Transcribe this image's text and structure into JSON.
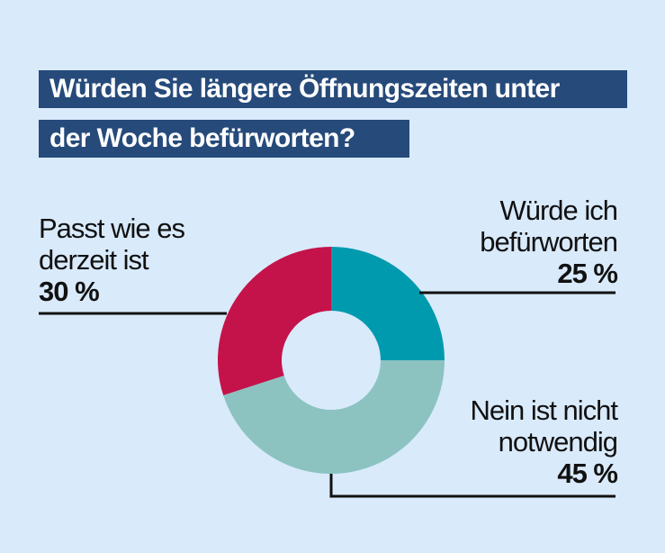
{
  "title_lines": [
    "Würden Sie längere Öffnungszeiten unter",
    "der Woche befürworten?"
  ],
  "chart_data": {
    "type": "pie",
    "title": "Würden Sie längere Öffnungszeiten unter der Woche befürworten?",
    "donut": true,
    "slices": [
      {
        "label_lines": [
          "Würde ich",
          "befürworten"
        ],
        "percent_label": "25 %",
        "value": 25,
        "color": "#009aaf"
      },
      {
        "label_lines": [
          "Nein ist nicht",
          "notwendig"
        ],
        "percent_label": "45 %",
        "value": 45,
        "color": "#8cc3c1"
      },
      {
        "label_lines": [
          "Passt wie es",
          "derzeit ist"
        ],
        "percent_label": "30 %",
        "value": 30,
        "color": "#c4134a"
      }
    ]
  },
  "colors": {
    "background": "#d9eafb",
    "title_bar": "#264a7a",
    "leader_line": "#111111"
  }
}
